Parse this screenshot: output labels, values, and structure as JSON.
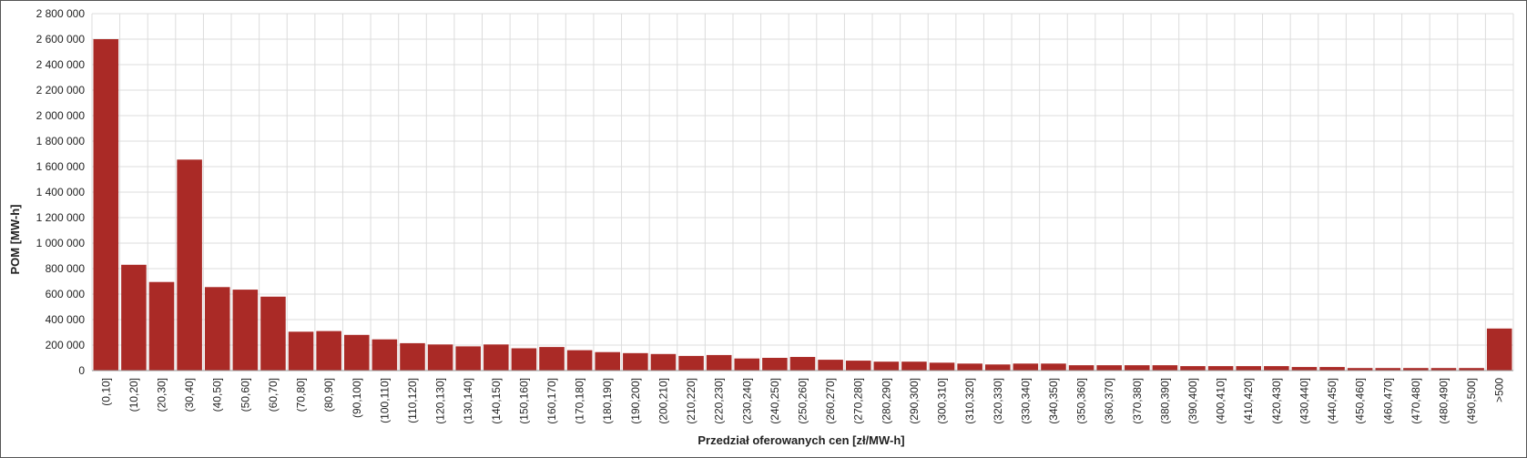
{
  "chart_data": {
    "type": "bar",
    "x_label": "Przedział oferowanych cen [zł/MW-h]",
    "y_label": "POM [MW-h]",
    "categories": [
      "(0,10]",
      "(10,20]",
      "(20,30]",
      "(30,40]",
      "(40,50]",
      "(50,60]",
      "(60,70]",
      "(70,80]",
      "(80,90]",
      "(90,100]",
      "(100,110]",
      "(110,120]",
      "(120,130]",
      "(130,140]",
      "(140,150]",
      "(150,160]",
      "(160,170]",
      "(170,180]",
      "(180,190]",
      "(190,200]",
      "(200,210]",
      "(210,220]",
      "(220,230]",
      "(230,240]",
      "(240,250]",
      "(250,260]",
      "(260,270]",
      "(270,280]",
      "(280,290]",
      "(290,300]",
      "(300,310]",
      "(310,320]",
      "(320,330]",
      "(330,340]",
      "(340,350]",
      "(350,360]",
      "(360,370]",
      "(370,380]",
      "(380,390]",
      "(390,400]",
      "(400,410]",
      "(410,420]",
      "(420,430]",
      "(430,440]",
      "(440,450]",
      "(450,460]",
      "(460,470]",
      "(470,480]",
      "(480,490]",
      "(490,500]",
      ">500"
    ],
    "values": [
      2600000,
      830000,
      695000,
      1655000,
      655000,
      635000,
      580000,
      305000,
      310000,
      280000,
      245000,
      215000,
      205000,
      190000,
      205000,
      175000,
      185000,
      160000,
      145000,
      137000,
      130000,
      115000,
      122000,
      95000,
      100000,
      107000,
      85000,
      78000,
      70000,
      70000,
      62000,
      55000,
      48000,
      55000,
      55000,
      42000,
      42000,
      42000,
      42000,
      35000,
      35000,
      35000,
      35000,
      28000,
      28000,
      20000,
      20000,
      20000,
      20000,
      20000,
      330000
    ],
    "color": "#aa2a26",
    "ylim": [
      0,
      2800000
    ],
    "yticks": [
      0,
      {
        "value": 200000,
        "label": "200 000"
      },
      {
        "value": 400000,
        "label": "400 000"
      },
      {
        "value": 600000,
        "label": "600 000"
      },
      {
        "value": 800000,
        "label": "800 000"
      },
      {
        "value": 1000000,
        "label": "1 000 000"
      },
      {
        "value": 1200000,
        "label": "1 200 000"
      },
      {
        "value": 1400000,
        "label": "1 400 000"
      },
      {
        "value": 1600000,
        "label": "1 600 000"
      },
      {
        "value": 1800000,
        "label": "1 800 000"
      },
      {
        "value": 2000000,
        "label": "2 000 000"
      },
      {
        "value": 2200000,
        "label": "2 200 000"
      },
      {
        "value": 2400000,
        "label": "2 400 000"
      },
      {
        "value": 2600000,
        "label": "2 600 000"
      },
      {
        "value": 2800000,
        "label": "2 800 000"
      }
    ],
    "grid": true
  }
}
